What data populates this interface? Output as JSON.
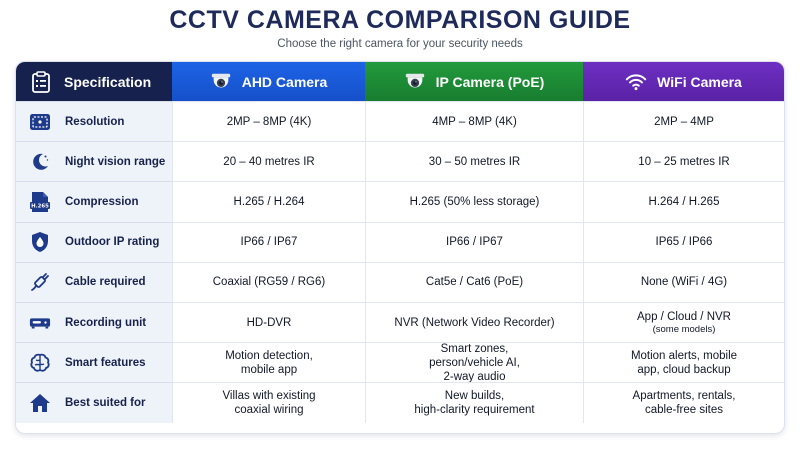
{
  "page": {
    "title": "CCTV CAMERA COMPARISON GUIDE",
    "subtitle": "Choose the right camera for your security needs"
  },
  "header": {
    "spec_label": "Specification",
    "ahd_label": "AHD Camera",
    "ip_label": "IP Camera (PoE)",
    "wifi_label": "WiFi Camera",
    "spec_icon": "clipboard-icon",
    "ahd_icon": "dome-camera-icon",
    "ip_icon": "dome-camera-icon",
    "wifi_icon": "wifi-icon"
  },
  "colors": {
    "spec_header": "#16224d",
    "ahd_header": "#1d63e6",
    "ip_header": "#229a3c",
    "wifi_header": "#6d2fc2",
    "icon_blue": "#1e3a8a"
  },
  "rows": [
    {
      "label": "Resolution",
      "icon": "resolution-icon",
      "ahd": "2MP – 8MP (4K)",
      "ip": "4MP – 8MP (4K)",
      "wifi": "2MP – 4MP"
    },
    {
      "label": "Night vision range",
      "icon": "moon-icon",
      "ahd": "20 – 40 metres IR",
      "ip": "30 – 50 metres IR",
      "wifi": "10 – 25 metres IR"
    },
    {
      "label": "Compression",
      "icon": "file-h265-icon",
      "icon_text": "H.265",
      "ahd": "H.265 / H.264",
      "ip": "H.265 (50% less storage)",
      "wifi": "H.264 / H.265"
    },
    {
      "label": "Outdoor IP rating",
      "icon": "water-drop-shield-icon",
      "ahd": "IP66 / IP67",
      "ip": "IP66 / IP67",
      "wifi": "IP65 / IP66"
    },
    {
      "label": "Cable required",
      "icon": "cable-icon",
      "ahd": "Coaxial (RG59 / RG6)",
      "ip": "Cat5e / Cat6 (PoE)",
      "wifi": "None (WiFi / 4G)"
    },
    {
      "label": "Recording unit",
      "icon": "recorder-icon",
      "ahd": "HD-DVR",
      "ip": "NVR (Network Video Recorder)",
      "wifi": "App / Cloud / NVR",
      "wifi_note": "(some models)"
    },
    {
      "label": "Smart features",
      "icon": "brain-icon",
      "ahd_lines": [
        "Motion detection,",
        "mobile app"
      ],
      "ip_lines": [
        "Smart zones,",
        "person/vehicle AI,",
        "2-way audio"
      ],
      "wifi_lines": [
        "Motion alerts, mobile",
        "app, cloud backup"
      ]
    },
    {
      "label": "Best suited for",
      "icon": "home-icon",
      "ahd_lines": [
        "Villas with existing",
        "coaxial wiring"
      ],
      "ip_lines": [
        "New builds,",
        "high-clarity requirement"
      ],
      "wifi_lines": [
        "Apartments, rentals,",
        "cable-free sites"
      ]
    }
  ]
}
